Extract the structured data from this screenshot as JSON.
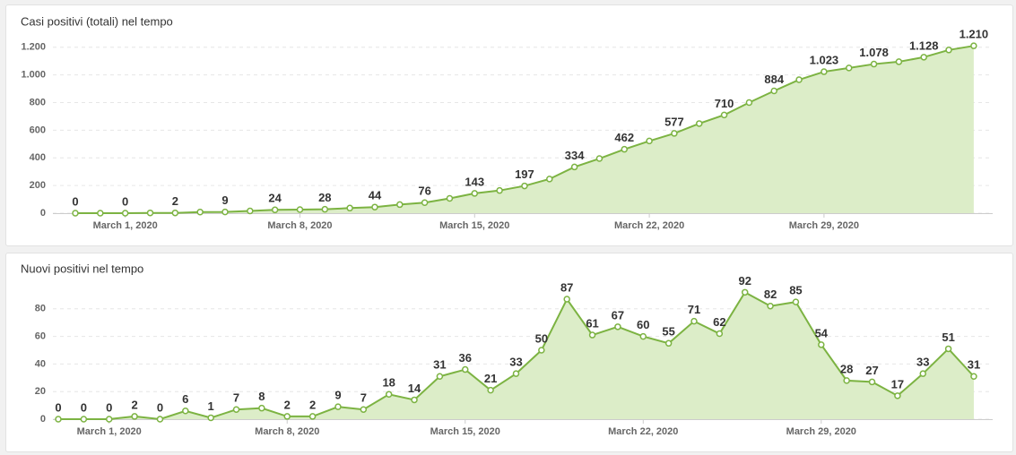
{
  "chart_data": [
    {
      "type": "area",
      "title": "Casi positivi (totali) nel tempo",
      "color": "#7cb342",
      "fill": "#dcedc8",
      "categories": [
        null,
        null,
        "March 1, 2020",
        null,
        null,
        null,
        null,
        null,
        null,
        "March 8, 2020",
        null,
        null,
        null,
        null,
        null,
        null,
        "March 15, 2020",
        null,
        null,
        null,
        null,
        null,
        null,
        "March 22, 2020",
        null,
        null,
        null,
        null,
        null,
        null,
        "March 29, 2020",
        null,
        null,
        null,
        null,
        null,
        null
      ],
      "values": [
        0,
        0,
        0,
        2,
        2,
        8,
        9,
        16,
        24,
        26,
        28,
        37,
        44,
        62,
        76,
        107,
        143,
        164,
        197,
        247,
        334,
        395,
        462,
        522,
        577,
        648,
        710,
        800,
        884,
        965,
        1023,
        1050,
        1078,
        1095,
        1128,
        1180,
        1210
      ],
      "value_labels": [
        "0",
        null,
        "0",
        null,
        "2",
        null,
        "9",
        null,
        "24",
        null,
        "28",
        null,
        "44",
        null,
        "76",
        null,
        "143",
        null,
        "197",
        null,
        "334",
        null,
        "462",
        null,
        "577",
        null,
        "710",
        null,
        "884",
        null,
        "1.023",
        null,
        "1.078",
        null,
        "1.128",
        null,
        "1.210"
      ],
      "ylim": [
        0,
        1250
      ],
      "yticks": [
        0,
        200,
        400,
        600,
        800,
        {
          "value": 1000,
          "label": "1.000"
        },
        {
          "value": 1200,
          "label": "1.200"
        }
      ],
      "grid": true
    },
    {
      "type": "area",
      "title": "Nuovi positivi nel tempo",
      "color": "#7cb342",
      "fill": "#dcedc8",
      "categories": [
        null,
        null,
        "March 1, 2020",
        null,
        null,
        null,
        null,
        null,
        null,
        "March 8, 2020",
        null,
        null,
        null,
        null,
        null,
        null,
        "March 15, 2020",
        null,
        null,
        null,
        null,
        null,
        null,
        "March 22, 2020",
        null,
        null,
        null,
        null,
        null,
        null,
        "March 29, 2020",
        null,
        null,
        null,
        null,
        null,
        null
      ],
      "values": [
        0,
        0,
        0,
        2,
        0,
        6,
        1,
        7,
        8,
        2,
        2,
        9,
        7,
        18,
        14,
        31,
        36,
        21,
        33,
        50,
        87,
        61,
        67,
        60,
        55,
        71,
        62,
        92,
        82,
        85,
        54,
        28,
        27,
        17,
        33,
        51,
        31
      ],
      "ylim": [
        0,
        100
      ],
      "yticks": [
        0,
        20,
        40,
        60,
        80
      ],
      "grid": true
    }
  ]
}
